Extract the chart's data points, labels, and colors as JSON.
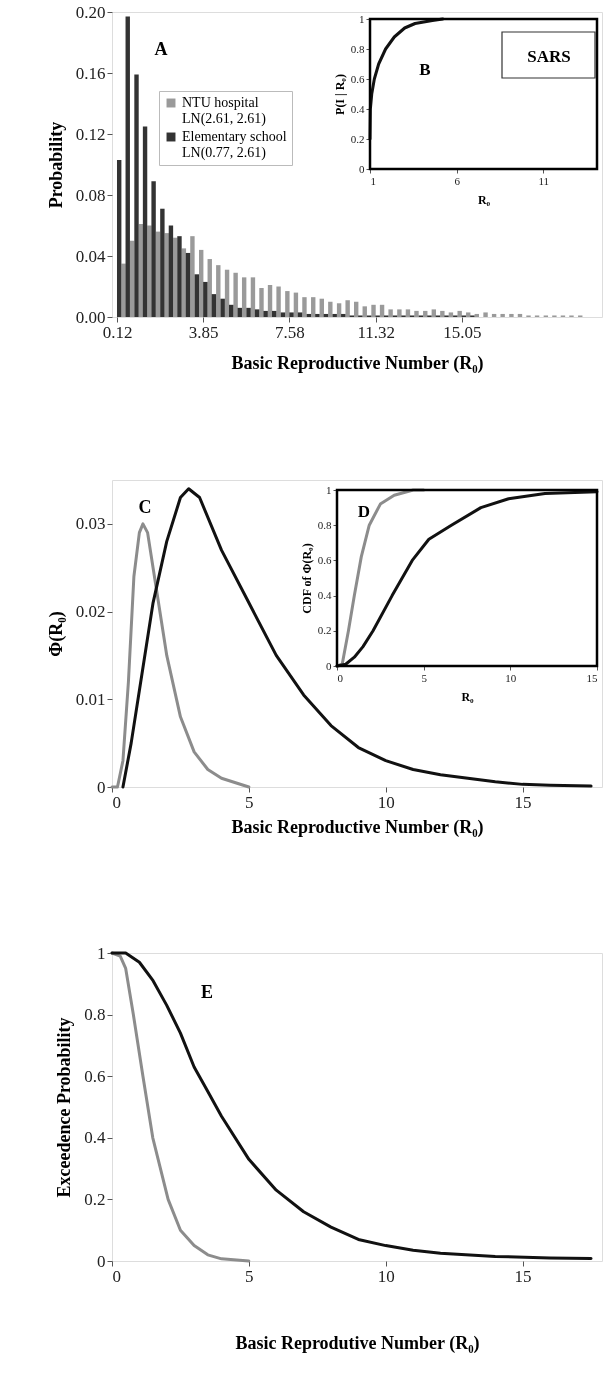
{
  "chart_data": [
    {
      "type": "bar",
      "xlabel": "Basic Reproductive Number (R₀)",
      "ylabel": "Probability",
      "xlim": [
        0.12,
        20.9
      ],
      "xticks": [
        0.12,
        3.85,
        7.58,
        11.32,
        15.05
      ],
      "ylim": [
        0,
        0.2
      ],
      "yticks": [
        {
          "value": 0,
          "label": "0.00"
        },
        0.04,
        0.08,
        0.12,
        0.16,
        {
          "value": 0.2,
          "label": "0.20"
        }
      ],
      "legend": "top left",
      "annotations": [
        "A"
      ],
      "x": [
        0.31,
        0.68,
        1.06,
        1.43,
        1.8,
        2.18,
        2.55,
        2.92,
        3.29,
        3.67,
        4.04,
        4.41,
        4.79,
        5.16,
        5.53,
        5.91,
        6.28,
        6.65,
        7.02,
        7.4,
        7.77,
        8.14,
        8.52,
        8.89,
        9.26,
        9.64,
        10.01,
        10.38,
        10.75,
        11.13,
        11.5,
        11.87,
        12.25,
        12.62,
        12.99,
        13.37,
        13.74,
        14.11,
        14.48,
        14.86,
        15.23,
        15.6,
        15.98,
        16.35,
        16.72,
        17.1,
        17.47,
        17.84,
        18.21,
        18.59,
        18.96,
        19.33,
        19.7,
        20.08
      ],
      "series": [
        {
          "name": "NTU hospital\nLN(2.61, 2.61)",
          "color": "#9a9a9a",
          "values": [
            0.035,
            0.05,
            0.061,
            0.06,
            0.056,
            0.055,
            0.052,
            0.045,
            0.053,
            0.044,
            0.038,
            0.034,
            0.031,
            0.029,
            0.026,
            0.026,
            0.019,
            0.021,
            0.02,
            0.017,
            0.016,
            0.013,
            0.013,
            0.012,
            0.01,
            0.009,
            0.011,
            0.01,
            0.007,
            0.008,
            0.008,
            0.005,
            0.005,
            0.005,
            0.004,
            0.004,
            0.005,
            0.004,
            0.003,
            0.004,
            0.003,
            0.002,
            0.003,
            0.002,
            0.002,
            0.002,
            0.002,
            0.001,
            0.001,
            0.001,
            0.001,
            0.001,
            0.001,
            0.001
          ]
        },
        {
          "name": "Elementary school\nLN(0.77, 2.61)",
          "color": "#333333",
          "values": [
            0.103,
            0.197,
            0.159,
            0.125,
            0.089,
            0.071,
            0.06,
            0.053,
            0.042,
            0.028,
            0.023,
            0.015,
            0.012,
            0.008,
            0.006,
            0.006,
            0.005,
            0.004,
            0.004,
            0.003,
            0.003,
            0.003,
            0.002,
            0.002,
            0.002,
            0.002,
            0.002,
            0.001,
            0.001,
            0.001,
            0.001,
            0.001,
            0.001,
            0.001,
            0.001,
            0.001,
            0.001,
            0.001,
            0.001,
            0.001,
            0.001,
            0.001,
            0,
            0,
            0,
            0,
            0,
            0,
            0,
            0,
            0,
            0,
            0,
            0
          ]
        }
      ]
    },
    {
      "type": "line",
      "xlabel": "R₀",
      "ylabel": "P(I | R₀)",
      "xlim": [
        1,
        14.1
      ],
      "xticks": [
        1,
        6,
        11
      ],
      "ylim": [
        0,
        1
      ],
      "yticks": [
        0,
        0.2,
        0.4,
        0.6,
        0.8,
        1
      ],
      "annotations": [
        "B",
        "SARS"
      ],
      "series": [
        {
          "color": "#111111",
          "x": [
            1,
            1.02,
            1.1,
            1.25,
            1.5,
            1.9,
            2.4,
            3,
            3.6,
            4.6,
            5.2
          ],
          "values": [
            0.2,
            0.4,
            0.5,
            0.6,
            0.7,
            0.8,
            0.88,
            0.94,
            0.97,
            0.99,
            1
          ]
        }
      ]
    },
    {
      "type": "line",
      "xlabel": "Basic Reproductive Number (R₀)",
      "ylabel": "Φ(R₀)",
      "xlim": [
        0,
        17.9
      ],
      "xticks": [
        0,
        5,
        10,
        15
      ],
      "ylim": [
        0,
        0.035
      ],
      "yticks": [
        0,
        0.01,
        0.02,
        0.03
      ],
      "annotations": [
        "C"
      ],
      "series": [
        {
          "color": "#8c8c8c",
          "x": [
            0,
            0.2,
            0.4,
            0.6,
            0.8,
            1.0,
            1.13,
            1.3,
            1.5,
            2,
            2.5,
            3,
            3.5,
            4,
            5
          ],
          "values": [
            0,
            0,
            0.003,
            0.012,
            0.024,
            0.029,
            0.03,
            0.029,
            0.025,
            0.015,
            0.008,
            0.004,
            0.002,
            0.001,
            0
          ]
        },
        {
          "color": "#111111",
          "x": [
            0.4,
            0.7,
            1,
            1.5,
            2,
            2.5,
            2.8,
            3.2,
            4,
            5,
            6,
            7,
            8,
            9,
            10,
            11,
            12,
            13,
            14,
            15,
            16,
            17.5
          ],
          "values": [
            0,
            0.005,
            0.011,
            0.021,
            0.028,
            0.033,
            0.034,
            0.033,
            0.027,
            0.021,
            0.015,
            0.0105,
            0.007,
            0.0045,
            0.003,
            0.002,
            0.0014,
            0.001,
            0.0006,
            0.0003,
            0.0002,
            0.0001
          ]
        }
      ]
    },
    {
      "type": "line",
      "xlabel": "R₀",
      "ylabel": "CDF of Φ(R₀)",
      "xlim": [
        0,
        15
      ],
      "xticks": [
        0,
        5,
        10,
        15
      ],
      "ylim": [
        0,
        1
      ],
      "yticks": [
        0,
        0.2,
        0.4,
        0.6,
        0.8,
        1
      ],
      "annotations": [
        "D"
      ],
      "series": [
        {
          "color": "#8c8c8c",
          "x": [
            0,
            0.3,
            0.66,
            1,
            1.4,
            1.86,
            2.5,
            3.3,
            4.4,
            5
          ],
          "values": [
            0,
            0.01,
            0.2,
            0.4,
            0.62,
            0.8,
            0.92,
            0.97,
            1,
            1
          ]
        },
        {
          "color": "#111111",
          "x": [
            0,
            0.5,
            1,
            1.5,
            2.08,
            3.18,
            4.34,
            5.3,
            6.6,
            8.3,
            9.9,
            12,
            15
          ],
          "values": [
            0,
            0.01,
            0.05,
            0.11,
            0.2,
            0.4,
            0.6,
            0.72,
            0.8,
            0.9,
            0.95,
            0.98,
            0.99
          ]
        }
      ]
    },
    {
      "type": "line",
      "xlabel": "Basic Reprodutive Number (R₀)",
      "ylabel": "Exceedence Probability",
      "xlim": [
        0,
        17.9
      ],
      "xticks": [
        0,
        5,
        10,
        15
      ],
      "ylim": [
        0,
        1
      ],
      "yticks": [
        0,
        0.2,
        0.4,
        0.6,
        0.8,
        1
      ],
      "annotations": [
        "E"
      ],
      "series": [
        {
          "color": "#8c8c8c",
          "x": [
            0,
            0.3,
            0.5,
            0.78,
            1.13,
            1.49,
            2.05,
            2.5,
            3,
            3.5,
            4,
            5
          ],
          "values": [
            1,
            0.99,
            0.95,
            0.8,
            0.6,
            0.4,
            0.2,
            0.1,
            0.05,
            0.02,
            0.007,
            0
          ]
        },
        {
          "color": "#111111",
          "x": [
            0,
            0.5,
            1,
            1.5,
            2,
            2.5,
            3,
            3.5,
            4,
            5,
            6,
            7,
            8,
            9,
            10,
            11,
            12,
            14,
            16,
            17.5
          ],
          "values": [
            1,
            1,
            0.97,
            0.91,
            0.83,
            0.74,
            0.63,
            0.55,
            0.47,
            0.33,
            0.23,
            0.16,
            0.11,
            0.07,
            0.05,
            0.035,
            0.025,
            0.015,
            0.01,
            0.008
          ]
        }
      ]
    }
  ]
}
